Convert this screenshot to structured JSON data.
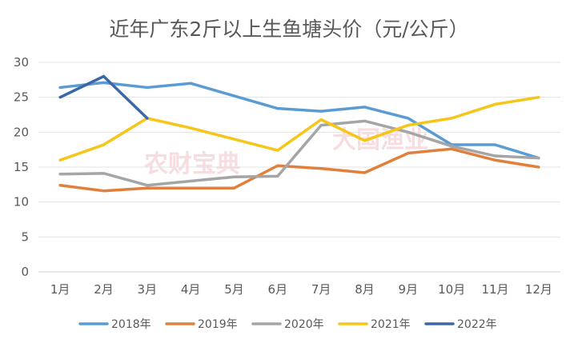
{
  "chart_data": {
    "type": "line",
    "title": "近年广东2斤以上生鱼塘头价（元/公斤）",
    "categories": [
      "1月",
      "2月",
      "3月",
      "4月",
      "5月",
      "6月",
      "7月",
      "8月",
      "9月",
      "10月",
      "11月",
      "12月"
    ],
    "ylim": [
      0,
      30
    ],
    "yticks": [
      0,
      5,
      10,
      15,
      20,
      25,
      30
    ],
    "grid": true,
    "legend_position": "bottom",
    "watermarks": [
      "农财宝典",
      "大国渔业"
    ],
    "series": [
      {
        "name": "2018年",
        "color": "#5a9bd4",
        "values": [
          26.4,
          27.1,
          26.4,
          27.0,
          25.2,
          23.4,
          23.0,
          23.6,
          22.0,
          18.2,
          18.2,
          16.3
        ]
      },
      {
        "name": "2019年",
        "color": "#e0803c",
        "values": [
          12.4,
          11.6,
          12.0,
          12.0,
          12.0,
          15.2,
          14.8,
          14.2,
          17.0,
          17.6,
          16.0,
          15.0
        ]
      },
      {
        "name": "2020年",
        "color": "#a5a5a5",
        "values": [
          14.0,
          14.1,
          12.4,
          13.0,
          13.6,
          13.7,
          21.0,
          21.6,
          20.0,
          18.0,
          16.6,
          16.3
        ]
      },
      {
        "name": "2021年",
        "color": "#f5c518",
        "values": [
          16.0,
          18.2,
          22.0,
          20.6,
          19.0,
          17.4,
          21.8,
          18.8,
          21.0,
          22.0,
          24.0,
          25.0
        ]
      },
      {
        "name": "2022年",
        "color": "#3b67a8",
        "values": [
          25.0,
          28.0,
          22.0,
          null,
          null,
          null,
          null,
          null,
          null,
          null,
          null,
          null
        ]
      }
    ]
  }
}
